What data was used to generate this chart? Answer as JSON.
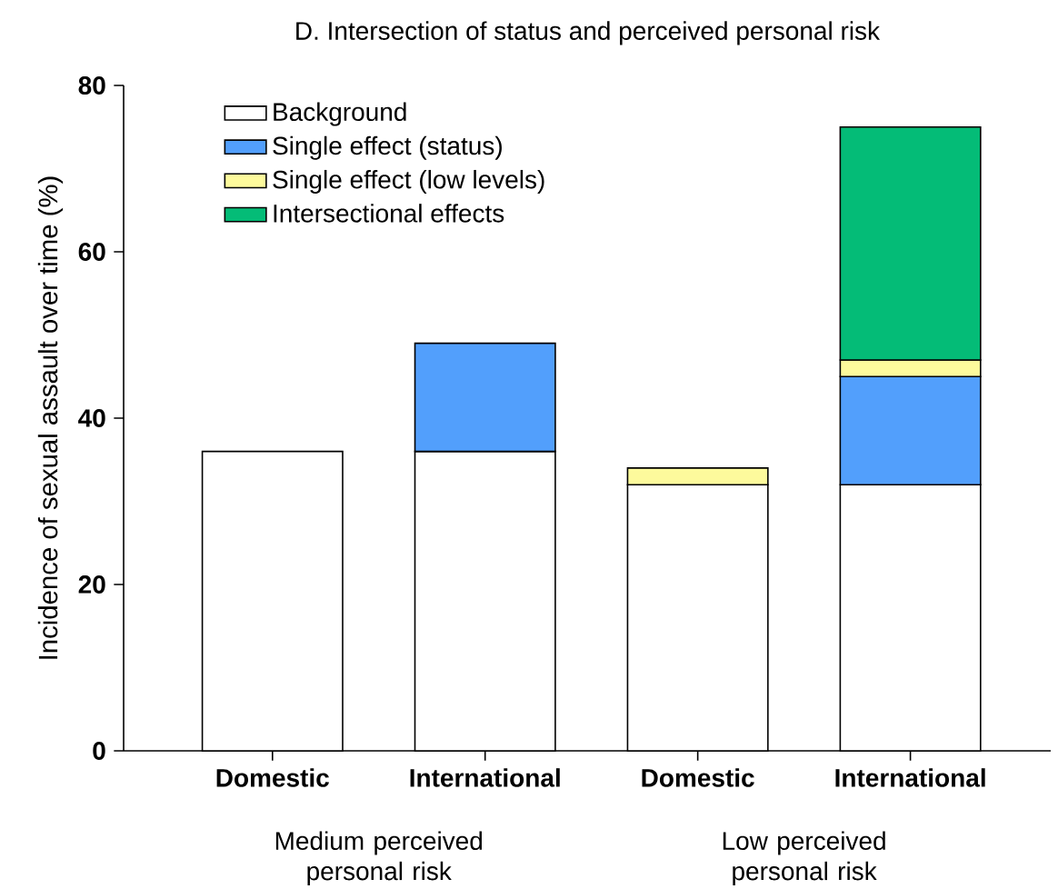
{
  "chart_data": {
    "type": "bar",
    "stacked": true,
    "title": "D. Intersection of status and perceived personal risk",
    "ylabel": "Incidence of sexual assault over time (%)",
    "categories": [
      "Domestic",
      "International",
      "Domestic",
      "International"
    ],
    "series": [
      {
        "name": "Background",
        "color": "#ffffff",
        "values": [
          36,
          36,
          32,
          32
        ]
      },
      {
        "name": "Single effect (status)",
        "color": "#529ffc",
        "values": [
          null,
          13,
          null,
          13
        ]
      },
      {
        "name": "Single effect (low levels)",
        "color": "#fdfa9c",
        "values": [
          null,
          null,
          2,
          2
        ]
      },
      {
        "name": "Intersectional effects",
        "color": "#04bc77",
        "values": [
          null,
          null,
          null,
          28
        ]
      }
    ],
    "ylim": [
      0,
      80
    ],
    "yticks": [
      0,
      20,
      40,
      60,
      80
    ],
    "grid": false,
    "legend": "top left",
    "annotations": [
      "Medium perceived personal risk",
      "Low perceived personal risk"
    ]
  }
}
